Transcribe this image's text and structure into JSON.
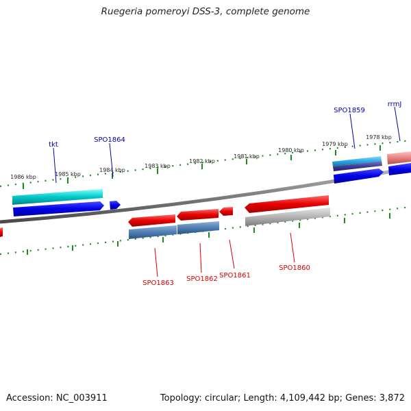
{
  "title": "Ruegeria pomeroyi DSS-3, complete genome",
  "footer": {
    "accession": "Accession: NC_003911",
    "stats": "Topology: circular; Length: 4,109,442 bp; Genes: 3,872"
  },
  "ticks": [
    "1986 kbp",
    "1985 kbp",
    "1984 kbp",
    "1983 kbp",
    "1982 kbp",
    "1981 kbp",
    "1980 kbp",
    "1979 kbp",
    "1978 kbp"
  ],
  "genes_forward": [
    "tkt",
    "SPO1864",
    "SPO1859",
    "rrmJ"
  ],
  "genes_reverse": [
    "SPO1863",
    "SPO1862",
    "SPO1861",
    "SPO1860"
  ],
  "colors": {
    "backbone": "#808080",
    "tick": "#1a8c1a",
    "cds_forward": "#0000e6",
    "cds_reverse": "#e60000",
    "gene_cyan": "#00c8c8",
    "gene_light_blue": "#2aa7e6",
    "gene_steel": "#4f7fb3",
    "gene_grey": "#b4b4b4",
    "gene_pink": "#e88080",
    "label_forward": "#0000a8",
    "label_reverse": "#d40000"
  }
}
